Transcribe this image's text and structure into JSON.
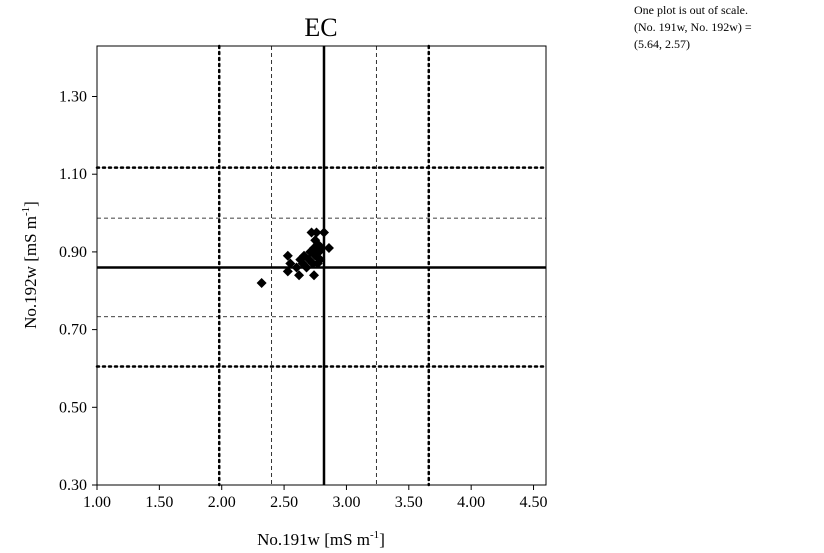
{
  "chart_data": {
    "type": "scatter",
    "title": "EC",
    "xlabel": {
      "main": "No.191w [mS m",
      "sup": "-1",
      "tail": "]"
    },
    "ylabel": {
      "main": "No.192w [mS m",
      "sup": "-1",
      "tail": "]"
    },
    "xlim": [
      1.0,
      4.6
    ],
    "ylim": [
      0.3,
      1.43
    ],
    "xticks": [
      1.0,
      1.5,
      2.0,
      2.5,
      3.0,
      3.5,
      4.0,
      4.5
    ],
    "xtick_labels": [
      "1.00",
      "1.50",
      "2.00",
      "2.50",
      "3.00",
      "3.50",
      "4.00",
      "4.50"
    ],
    "yticks": [
      0.3,
      0.5,
      0.7,
      0.9,
      1.1,
      1.3
    ],
    "ytick_labels": [
      "0.30",
      "0.50",
      "0.70",
      "0.90",
      "1.10",
      "1.30"
    ],
    "grid": false,
    "reference_lines": {
      "x": {
        "center": 2.82,
        "inner": [
          2.4,
          3.24
        ],
        "outer": [
          1.98,
          3.66
        ]
      },
      "y": {
        "center": 0.86,
        "inner": [
          0.733,
          0.987
        ],
        "outer": [
          0.605,
          1.117
        ]
      }
    },
    "points": [
      [
        2.32,
        0.82
      ],
      [
        2.53,
        0.85
      ],
      [
        2.55,
        0.87
      ],
      [
        2.53,
        0.89
      ],
      [
        2.6,
        0.86
      ],
      [
        2.62,
        0.84
      ],
      [
        2.63,
        0.88
      ],
      [
        2.65,
        0.87
      ],
      [
        2.66,
        0.89
      ],
      [
        2.68,
        0.86
      ],
      [
        2.7,
        0.88
      ],
      [
        2.71,
        0.9
      ],
      [
        2.72,
        0.95
      ],
      [
        2.73,
        0.87
      ],
      [
        2.74,
        0.84
      ],
      [
        2.74,
        0.91
      ],
      [
        2.75,
        0.93
      ],
      [
        2.75,
        0.89
      ],
      [
        2.76,
        0.95
      ],
      [
        2.77,
        0.87
      ],
      [
        2.77,
        0.92
      ],
      [
        2.78,
        0.9
      ],
      [
        2.79,
        0.88
      ],
      [
        2.8,
        0.91
      ],
      [
        2.82,
        0.95
      ],
      [
        2.86,
        0.91
      ]
    ],
    "marker": "diamond",
    "marker_color": "#000000",
    "annotation": [
      "One plot is out of scale.",
      "(No. 191w, No. 192w) =",
      "(5.64, 2.57)"
    ]
  }
}
